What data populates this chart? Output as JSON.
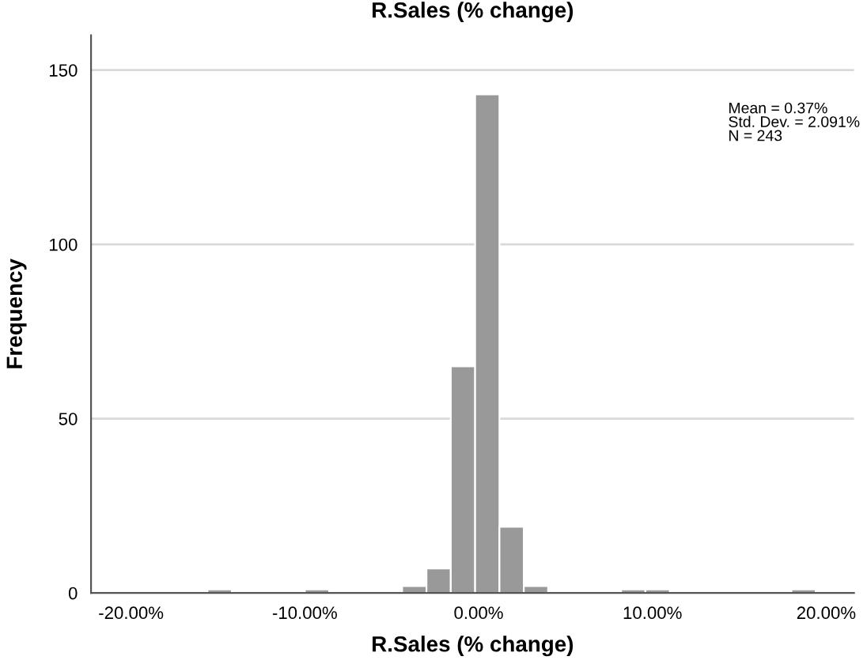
{
  "chart_data": {
    "type": "histogram",
    "title": "R.Sales (% change)",
    "xlabel": "R.Sales (% change)",
    "ylabel": "Frequency",
    "bins": [
      -15.6,
      -14.2,
      -12.8,
      -11.4,
      -10.0,
      -8.6,
      -7.2,
      -5.8,
      -4.4,
      -3.0,
      -1.6,
      -0.2,
      1.2,
      2.6,
      4.0,
      5.4,
      6.8,
      8.2,
      9.6,
      11.0,
      12.4,
      13.8,
      15.2,
      16.6,
      18.0,
      19.4
    ],
    "values": [
      1,
      0,
      0,
      0,
      1,
      0,
      0,
      0,
      2,
      7,
      65,
      143,
      19,
      2,
      0,
      0,
      0,
      1,
      1,
      0,
      0,
      0,
      0,
      0,
      1
    ],
    "color": "#999999",
    "xlim": [
      -22.3,
      21.6
    ],
    "ylim": [
      0,
      160
    ],
    "xticks": [
      {
        "value": -20,
        "label": "-20.00%"
      },
      {
        "value": -10,
        "label": "-10.00%"
      },
      {
        "value": 0,
        "label": "0.00%"
      },
      {
        "value": 10,
        "label": "10.00%"
      },
      {
        "value": 20,
        "label": "20.00%"
      }
    ],
    "yticks": [
      0,
      50,
      100,
      150
    ],
    "grid": "y",
    "annotations": [
      "Mean = 0.37%\nStd. Dev. = 2.091%\nN = 243"
    ]
  }
}
